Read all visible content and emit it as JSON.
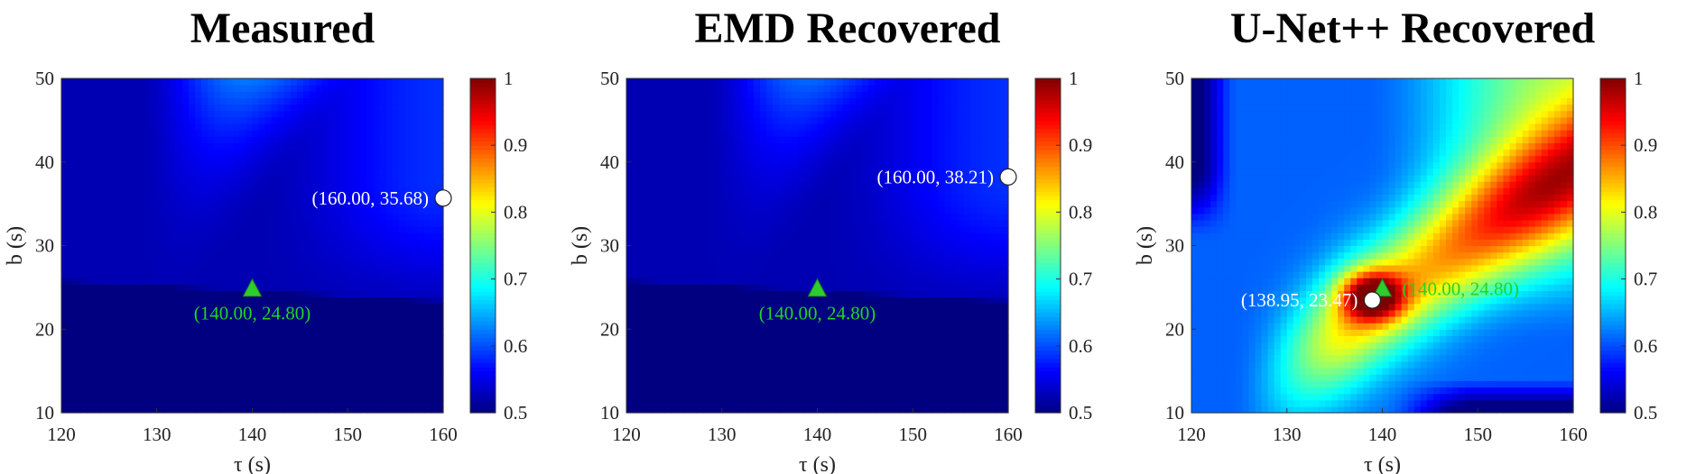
{
  "colors": {
    "colormap": "jet",
    "true_marker": "#2ecc2e",
    "estimate_marker": "#ffffff",
    "anno_true": "#22d422",
    "anno_est": "#ffffff"
  },
  "chart_data": [
    {
      "type": "heatmap",
      "title": "Measured",
      "xlabel": "τ (s)",
      "ylabel": "b (s)",
      "xlim": [
        120,
        160
      ],
      "ylim": [
        10,
        50
      ],
      "x_ticks": [
        "120",
        "130",
        "140",
        "150",
        "160"
      ],
      "y_ticks": [
        "10",
        "20",
        "30",
        "40",
        "50"
      ],
      "colorbar": {
        "range": [
          0.5,
          1
        ],
        "ticks": [
          "0.5",
          "0.6",
          "0.7",
          "0.8",
          "0.9",
          "1"
        ]
      },
      "true_point": {
        "x": 140,
        "y": 24.8,
        "label": "(140.00, 24.80)"
      },
      "estimate_point": {
        "x": 160,
        "y": 35.68,
        "label": "(160.00, 35.68)"
      }
    },
    {
      "type": "heatmap",
      "title": "EMD Recovered",
      "xlabel": "τ (s)",
      "ylabel": "b (s)",
      "xlim": [
        120,
        160
      ],
      "ylim": [
        10,
        50
      ],
      "x_ticks": [
        "120",
        "130",
        "140",
        "150",
        "160"
      ],
      "y_ticks": [
        "10",
        "20",
        "30",
        "40",
        "50"
      ],
      "colorbar": {
        "range": [
          0.5,
          1
        ],
        "ticks": [
          "0.5",
          "0.6",
          "0.7",
          "0.8",
          "0.9",
          "1"
        ]
      },
      "true_point": {
        "x": 140,
        "y": 24.8,
        "label": "(140.00, 24.80)"
      },
      "estimate_point": {
        "x": 160,
        "y": 38.21,
        "label": "(160.00, 38.21)"
      }
    },
    {
      "type": "heatmap",
      "title": "U-Net++ Recovered",
      "xlabel": "τ (s)",
      "ylabel": "b (s)",
      "xlim": [
        120,
        160
      ],
      "ylim": [
        10,
        50
      ],
      "x_ticks": [
        "120",
        "130",
        "140",
        "150",
        "160"
      ],
      "y_ticks": [
        "10",
        "20",
        "30",
        "40",
        "50"
      ],
      "colorbar": {
        "range": [
          0.5,
          1
        ],
        "ticks": [
          "0.5",
          "0.6",
          "0.7",
          "0.8",
          "0.9",
          "1"
        ]
      },
      "true_point": {
        "x": 140,
        "y": 24.8,
        "label": "(140.00, 24.80)"
      },
      "estimate_point": {
        "x": 138.95,
        "y": 23.47,
        "label": "(138.95, 23.47)"
      }
    }
  ]
}
